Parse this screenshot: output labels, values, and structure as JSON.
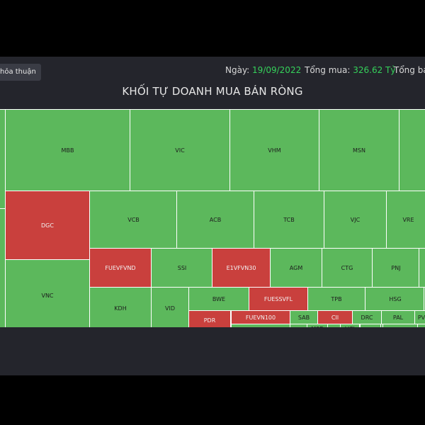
{
  "toolbar": {
    "tab_label": "hỏa thuận"
  },
  "header": {
    "date_label": "Ngày:",
    "date_value": "19/09/2022",
    "buy_label": "Tổng mua:",
    "buy_value": "326.62 Tỷ",
    "sell_label": "Tổng bá"
  },
  "chart_title": "KHỐI TỰ DOANH MUA BÁN RÒNG",
  "colors": {
    "buy": "#5cb85c",
    "sell": "#c9403d",
    "background": "#24252c"
  },
  "tiles": [
    {
      "label": "MBB",
      "side": "buy"
    },
    {
      "label": "VIC",
      "side": "buy"
    },
    {
      "label": "VHM",
      "side": "buy"
    },
    {
      "label": "MSN",
      "side": "buy"
    },
    {
      "label": "",
      "side": "buy"
    },
    {
      "label": "",
      "side": "buy"
    },
    {
      "label": "DGC",
      "side": "sell"
    },
    {
      "label": "VCB",
      "side": "buy"
    },
    {
      "label": "ACB",
      "side": "buy"
    },
    {
      "label": "TCB",
      "side": "buy"
    },
    {
      "label": "VJC",
      "side": "buy"
    },
    {
      "label": "VRE",
      "side": "buy"
    },
    {
      "label": "",
      "side": "buy"
    },
    {
      "label": "VNC",
      "side": "buy"
    },
    {
      "label": "FUEVFVND",
      "side": "sell"
    },
    {
      "label": "SSI",
      "side": "buy"
    },
    {
      "label": "E1VFVN30",
      "side": "sell"
    },
    {
      "label": "AGM",
      "side": "buy"
    },
    {
      "label": "CTG",
      "side": "buy"
    },
    {
      "label": "PNJ",
      "side": "buy"
    },
    {
      "label": "",
      "side": "buy"
    },
    {
      "label": "KDH",
      "side": "buy"
    },
    {
      "label": "VID",
      "side": "buy"
    },
    {
      "label": "BWE",
      "side": "buy"
    },
    {
      "label": "FUESSVFL",
      "side": "sell"
    },
    {
      "label": "TPB",
      "side": "buy"
    },
    {
      "label": "HSG",
      "side": "buy"
    },
    {
      "label": "",
      "side": "buy"
    },
    {
      "label": "PDR",
      "side": "sell"
    },
    {
      "label": "FUEVN100",
      "side": "sell"
    },
    {
      "label": "SAB",
      "side": "buy"
    },
    {
      "label": "CII",
      "side": "sell"
    },
    {
      "label": "DRC",
      "side": "buy"
    },
    {
      "label": "PAL",
      "side": "buy"
    },
    {
      "label": "PV",
      "side": "buy"
    },
    {
      "label": "",
      "side": "buy"
    },
    {
      "label": "MSB",
      "side": "buy"
    },
    {
      "label": "VCI",
      "side": "buy"
    },
    {
      "label": "",
      "side": "buy"
    },
    {
      "label": "",
      "side": "buy"
    },
    {
      "label": "",
      "side": "buy"
    }
  ]
}
